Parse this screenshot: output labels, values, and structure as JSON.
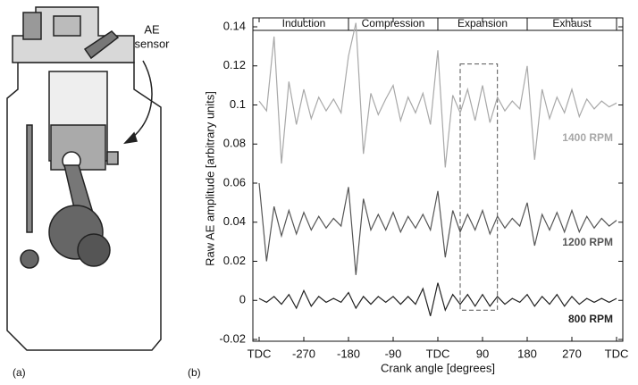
{
  "figure_labels": {
    "a": "(a)",
    "b": "(b)"
  },
  "diagram": {
    "sensor_label": [
      "AE",
      "sensor"
    ]
  },
  "chart_data": {
    "type": "line",
    "xlabel": "Crank angle [degrees]",
    "ylabel": "Raw AE amplitude [arbitrary units]",
    "xlim": [
      -360,
      360
    ],
    "ylim": [
      -0.02,
      0.14
    ],
    "xticks": [
      {
        "value": -360,
        "label": "TDC"
      },
      -270,
      -180,
      -90,
      {
        "value": 0,
        "label": "TDC"
      },
      90,
      180,
      270,
      {
        "value": 360,
        "label": "TDC"
      }
    ],
    "yticks": [
      -0.02,
      0,
      0.02,
      0.04,
      0.06,
      0.08,
      0.1,
      0.12,
      0.14
    ],
    "strokes": [
      {
        "name": "Induction",
        "range": [
          -360,
          -180
        ]
      },
      {
        "name": "Compression",
        "range": [
          -180,
          0
        ]
      },
      {
        "name": "Expansion",
        "range": [
          0,
          180
        ]
      },
      {
        "name": "Exhaust",
        "range": [
          180,
          360
        ]
      }
    ],
    "annotation_box": {
      "x": [
        45,
        120
      ],
      "y": [
        -0.005,
        0.121
      ]
    },
    "x": [
      -360,
      -345,
      -330,
      -315,
      -300,
      -285,
      -270,
      -255,
      -240,
      -225,
      -210,
      -195,
      -180,
      -165,
      -150,
      -135,
      -120,
      -105,
      -90,
      -75,
      -60,
      -45,
      -30,
      -15,
      0,
      15,
      30,
      45,
      60,
      75,
      90,
      105,
      120,
      135,
      150,
      165,
      180,
      195,
      210,
      225,
      240,
      255,
      270,
      285,
      300,
      315,
      330,
      345,
      360
    ],
    "series": [
      {
        "name": "1400 RPM",
        "color": "#a8a8a8",
        "values": [
          0.102,
          0.097,
          0.135,
          0.07,
          0.112,
          0.09,
          0.108,
          0.093,
          0.104,
          0.097,
          0.103,
          0.096,
          0.125,
          0.142,
          0.075,
          0.106,
          0.095,
          0.103,
          0.11,
          0.092,
          0.104,
          0.096,
          0.106,
          0.09,
          0.128,
          0.068,
          0.105,
          0.096,
          0.108,
          0.092,
          0.11,
          0.091,
          0.104,
          0.097,
          0.102,
          0.098,
          0.12,
          0.072,
          0.108,
          0.093,
          0.104,
          0.096,
          0.108,
          0.094,
          0.103,
          0.098,
          0.102,
          0.099,
          0.101
        ]
      },
      {
        "name": "1200 RPM",
        "color": "#555555",
        "values": [
          0.06,
          0.02,
          0.048,
          0.033,
          0.046,
          0.034,
          0.045,
          0.036,
          0.043,
          0.037,
          0.042,
          0.038,
          0.058,
          0.013,
          0.052,
          0.036,
          0.044,
          0.036,
          0.045,
          0.035,
          0.043,
          0.037,
          0.044,
          0.036,
          0.056,
          0.022,
          0.046,
          0.035,
          0.044,
          0.036,
          0.046,
          0.034,
          0.043,
          0.037,
          0.042,
          0.038,
          0.05,
          0.028,
          0.044,
          0.036,
          0.045,
          0.035,
          0.046,
          0.035,
          0.043,
          0.037,
          0.042,
          0.038,
          0.041
        ]
      },
      {
        "name": "800 RPM",
        "color": "#222222",
        "values": [
          0.001,
          -0.001,
          0.002,
          -0.002,
          0.003,
          -0.004,
          0.005,
          -0.003,
          0.002,
          -0.001,
          0.001,
          -0.001,
          0.004,
          -0.004,
          0.002,
          -0.002,
          0.002,
          -0.001,
          0.002,
          -0.002,
          0.002,
          -0.002,
          0.006,
          -0.008,
          0.009,
          -0.005,
          0.003,
          -0.002,
          0.003,
          -0.003,
          0.003,
          -0.003,
          0.002,
          -0.002,
          0.001,
          -0.001,
          0.003,
          -0.003,
          0.002,
          -0.002,
          0.003,
          -0.003,
          0.002,
          -0.002,
          0.001,
          -0.001,
          0.001,
          -0.001,
          0.001
        ]
      }
    ]
  }
}
